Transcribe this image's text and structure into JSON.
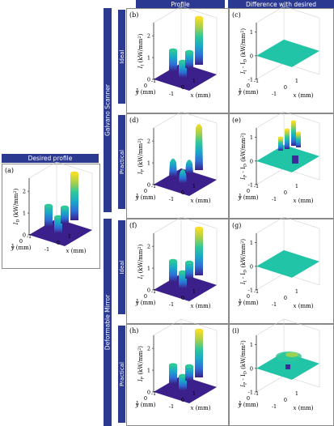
{
  "headers": {
    "desired": "Desired profile",
    "profile": "Profile",
    "difference": "Difference with desired"
  },
  "groups": {
    "galvano": "Galvano Scanner",
    "deformable": "Deformable Mirror"
  },
  "rows": {
    "ideal": "Ideal",
    "practical": "Practical"
  },
  "axes": {
    "x_label": "x (mm)",
    "y_label": "y (mm)",
    "xy_ticks": [
      "-1",
      "0",
      "1"
    ],
    "profile_z_ticks": [
      "0",
      "1",
      "2"
    ],
    "difference_z_ticks": [
      "-1",
      "0",
      "1"
    ]
  },
  "colors": {
    "header_bg": "#2b3990",
    "colormap": [
      "#3b1f8a",
      "#2d6fd6",
      "#1aa8c8",
      "#2fc89a",
      "#a8d04a",
      "#f5dd28"
    ],
    "flat_difference": "#22c4a8"
  },
  "panels": [
    {
      "id": "a",
      "label": "(a)",
      "kind": "profile",
      "zlabel_sym": "I",
      "zlabel_sub": "D",
      "zlabel_unit": " (kW/mm",
      "zlabel_end": ")"
    },
    {
      "id": "b",
      "label": "(b)",
      "kind": "profile",
      "zlabel_sym": "I",
      "zlabel_sub": "I",
      "zlabel_unit": " (kW/mm",
      "zlabel_end": ")"
    },
    {
      "id": "c",
      "label": "(c)",
      "kind": "difference",
      "zlabel_sym": "I",
      "zlabel_sub": "I",
      "zlabel_unit": " - I",
      "zlabel_sub2": "D",
      "zlabel_end2": " (kW/mm",
      "zlabel_end": ")"
    },
    {
      "id": "d",
      "label": "(d)",
      "kind": "profile",
      "zlabel_sym": "I",
      "zlabel_sub": "P",
      "zlabel_unit": " (kW/mm",
      "zlabel_end": ")"
    },
    {
      "id": "e",
      "label": "(e)",
      "kind": "difference",
      "zlabel_sym": "I",
      "zlabel_sub": "P",
      "zlabel_unit": " - I",
      "zlabel_sub2": "D",
      "zlabel_end2": " (kW/mm",
      "zlabel_end": ")"
    },
    {
      "id": "f",
      "label": "(f)",
      "kind": "profile",
      "zlabel_sym": "I",
      "zlabel_sub": "I",
      "zlabel_unit": " (kW/mm",
      "zlabel_end": ")"
    },
    {
      "id": "g",
      "label": "(g)",
      "kind": "difference",
      "zlabel_sym": "I",
      "zlabel_sub": "I",
      "zlabel_unit": " - I",
      "zlabel_sub2": "D",
      "zlabel_end2": " (kW/mm",
      "zlabel_end": ")"
    },
    {
      "id": "h",
      "label": "(h)",
      "kind": "profile",
      "zlabel_sym": "I",
      "zlabel_sub": "P",
      "zlabel_unit": " (kW/mm",
      "zlabel_end": ")"
    },
    {
      "id": "i",
      "label": "(i)",
      "kind": "difference",
      "zlabel_sym": "I",
      "zlabel_sub": "P",
      "zlabel_unit": " - I",
      "zlabel_sub2": "D",
      "zlabel_end2": " (kW/mm",
      "zlabel_end": ")"
    }
  ]
}
